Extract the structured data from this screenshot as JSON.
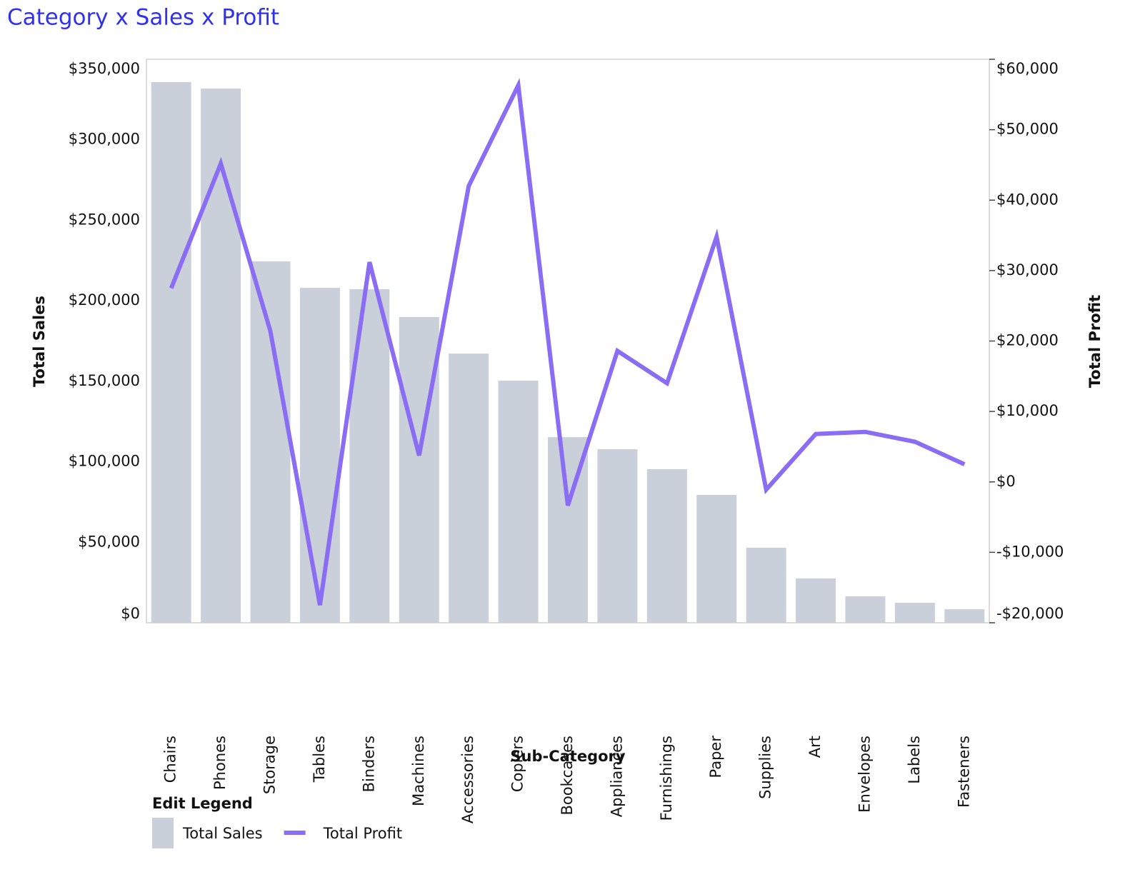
{
  "chart_data": {
    "type": "combo",
    "title": "Category x Sales x Profit",
    "x_label": "Sub-Category",
    "y_label": "Total Sales",
    "y2_label": "Total Profit",
    "legend_title": "Edit Legend",
    "categories": [
      "Chairs",
      "Phones",
      "Storage",
      "Tables",
      "Binders",
      "Machines",
      "Accessories",
      "Copiers",
      "Bookcases",
      "Appliances",
      "Furnishings",
      "Paper",
      "Supplies",
      "Art",
      "Envelopes",
      "Labels",
      "Fasteners"
    ],
    "series": [
      {
        "name": "Total Sales",
        "type": "bar",
        "color": "#c9d0d9",
        "values": [
          335800,
          331800,
          224500,
          208000,
          207200,
          189900,
          167200,
          150400,
          115300,
          107800,
          95400,
          79400,
          46600,
          27500,
          16400,
          12400,
          8400
        ]
      },
      {
        "name": "Total Profit",
        "type": "line",
        "axis": "y2",
        "color": "#8b6cf5",
        "values": [
          27500,
          45200,
          21400,
          -17500,
          31200,
          3750,
          42000,
          56300,
          -3350,
          18600,
          14000,
          34800,
          -1100,
          6800,
          7100,
          5700,
          2500
        ]
      }
    ],
    "ylim": [
      0,
      350000
    ],
    "yticks": [
      {
        "value": 0,
        "label": "$0"
      },
      {
        "value": 50000,
        "label": "$50,000"
      },
      {
        "value": 100000,
        "label": "$100,000"
      },
      {
        "value": 150000,
        "label": "$150,000"
      },
      {
        "value": 200000,
        "label": "$200,000"
      },
      {
        "value": 250000,
        "label": "$250,000"
      },
      {
        "value": 300000,
        "label": "$300,000"
      },
      {
        "value": 350000,
        "label": "$350,000"
      }
    ],
    "y2lim": [
      -20000,
      60000
    ],
    "y2ticks": [
      {
        "value": -20000,
        "label": "-$20,000"
      },
      {
        "value": -10000,
        "label": "-$10,000"
      },
      {
        "value": 0,
        "label": "$0"
      },
      {
        "value": 10000,
        "label": "$10,000"
      },
      {
        "value": 20000,
        "label": "$20,000"
      },
      {
        "value": 30000,
        "label": "$30,000"
      },
      {
        "value": 40000,
        "label": "$40,000"
      },
      {
        "value": 50000,
        "label": "$50,000"
      },
      {
        "value": 60000,
        "label": "$60,000"
      }
    ],
    "grid": false,
    "legend": "bottom-left"
  }
}
